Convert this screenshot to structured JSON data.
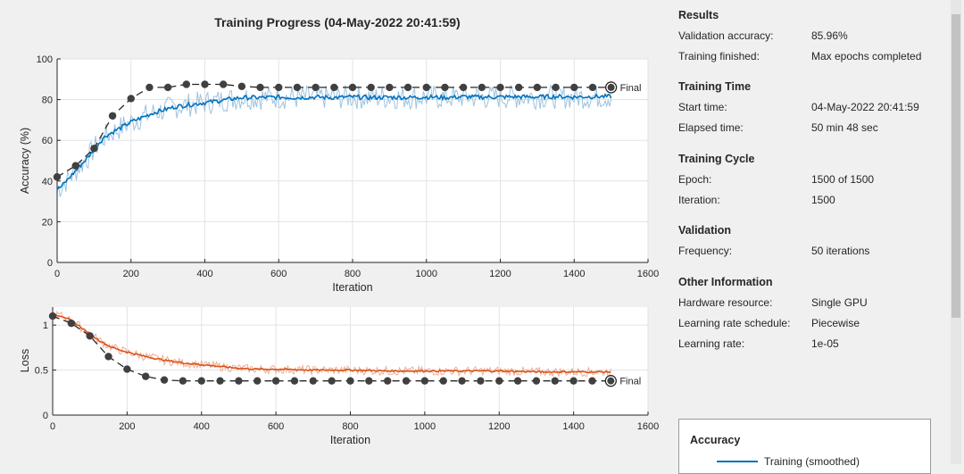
{
  "title": "Training Progress (04-May-2022 20:41:59)",
  "final_label": "Final",
  "colors": {
    "training_accuracy": "#0072bd",
    "training_loss": "#d95319",
    "validation": "#404040"
  },
  "chart_data": [
    {
      "type": "line",
      "ylabel": "Accuracy (%)",
      "xlabel": "Iteration",
      "xlim": [
        0,
        1600
      ],
      "ylim": [
        0,
        100
      ],
      "xticks": [
        "0",
        "200",
        "400",
        "600",
        "800",
        "1000",
        "1200",
        "1400",
        "1600"
      ],
      "yticks": [
        "0",
        "20",
        "40",
        "60",
        "80",
        "100"
      ],
      "grid": true,
      "series": [
        {
          "kind": "training_smoothed",
          "x": [
            0,
            10,
            20,
            30,
            40,
            50,
            60,
            70,
            80,
            90,
            100,
            110,
            120,
            130,
            140,
            150,
            160,
            170,
            180,
            190,
            200,
            220,
            240,
            260,
            280,
            300,
            320,
            340,
            360,
            380,
            400,
            420,
            440,
            460,
            480,
            500,
            550,
            600,
            650,
            700,
            750,
            800,
            850,
            900,
            950,
            1000,
            1050,
            1100,
            1150,
            1200,
            1250,
            1300,
            1350,
            1400,
            1450,
            1500
          ],
          "values": [
            36,
            37,
            39,
            41,
            43,
            45,
            47,
            49,
            51,
            53,
            56,
            58,
            60,
            62,
            63,
            64,
            65,
            66,
            67,
            68,
            69,
            70.5,
            72,
            73.5,
            74.5,
            75.5,
            76.5,
            77,
            77.5,
            78,
            78.5,
            79,
            79.5,
            80,
            80.5,
            81,
            81,
            81.2,
            81,
            81.2,
            81,
            81.3,
            81,
            81.2,
            81,
            81.3,
            81,
            81.4,
            81.2,
            81.3,
            81.4,
            81.3,
            81.5,
            81.3,
            81.5,
            81.5
          ]
        },
        {
          "kind": "validation",
          "x": [
            0,
            50,
            100,
            150,
            200,
            250,
            300,
            350,
            400,
            450,
            500,
            550,
            600,
            650,
            700,
            750,
            800,
            850,
            900,
            950,
            1000,
            1050,
            1100,
            1150,
            1200,
            1250,
            1300,
            1350,
            1400,
            1450,
            1500
          ],
          "values": [
            42,
            47.5,
            56,
            72,
            80.5,
            86,
            86,
            87.5,
            87.5,
            87.5,
            86.5,
            86,
            86,
            86,
            86,
            86,
            86,
            86,
            86,
            86,
            86,
            86,
            86,
            86,
            86,
            86,
            86,
            86,
            86,
            86,
            86
          ]
        }
      ]
    },
    {
      "type": "line",
      "ylabel": "Loss",
      "xlabel": "Iteration",
      "xlim": [
        0,
        1600
      ],
      "ylim": [
        0,
        1.2
      ],
      "xticks": [
        "0",
        "200",
        "400",
        "600",
        "800",
        "1000",
        "1200",
        "1400",
        "1600"
      ],
      "yticks": [
        "0",
        "0.5",
        "1"
      ],
      "grid": true,
      "series": [
        {
          "kind": "training_smoothed",
          "x": [
            0,
            25,
            50,
            75,
            100,
            125,
            150,
            175,
            200,
            250,
            300,
            350,
            400,
            450,
            500,
            550,
            600,
            700,
            800,
            900,
            1000,
            1100,
            1200,
            1300,
            1400,
            1500
          ],
          "values": [
            1.12,
            1.1,
            1.05,
            0.98,
            0.9,
            0.83,
            0.77,
            0.73,
            0.7,
            0.65,
            0.61,
            0.58,
            0.56,
            0.54,
            0.52,
            0.51,
            0.51,
            0.5,
            0.5,
            0.49,
            0.49,
            0.49,
            0.49,
            0.48,
            0.48,
            0.48
          ]
        },
        {
          "kind": "validation",
          "x": [
            0,
            50,
            100,
            150,
            200,
            250,
            300,
            350,
            400,
            450,
            500,
            550,
            600,
            650,
            700,
            750,
            800,
            850,
            900,
            950,
            1000,
            1050,
            1100,
            1150,
            1200,
            1250,
            1300,
            1350,
            1400,
            1450,
            1500
          ],
          "values": [
            1.1,
            1.02,
            0.88,
            0.65,
            0.51,
            0.43,
            0.39,
            0.38,
            0.38,
            0.38,
            0.38,
            0.38,
            0.38,
            0.38,
            0.38,
            0.38,
            0.38,
            0.38,
            0.38,
            0.38,
            0.38,
            0.38,
            0.38,
            0.38,
            0.38,
            0.38,
            0.38,
            0.38,
            0.38,
            0.38,
            0.38
          ]
        }
      ]
    }
  ],
  "panel": {
    "results": {
      "heading": "Results",
      "rows": [
        {
          "label": "Validation accuracy:",
          "value": "85.96%"
        },
        {
          "label": "Training finished:",
          "value": "Max epochs completed"
        }
      ]
    },
    "training_time": {
      "heading": "Training Time",
      "rows": [
        {
          "label": "Start time:",
          "value": "04-May-2022 20:41:59"
        },
        {
          "label": "Elapsed time:",
          "value": "50 min 48 sec"
        }
      ]
    },
    "training_cycle": {
      "heading": "Training Cycle",
      "rows": [
        {
          "label": "Epoch:",
          "value": "1500 of 1500"
        },
        {
          "label": "Iteration:",
          "value": "1500"
        }
      ]
    },
    "validation": {
      "heading": "Validation",
      "rows": [
        {
          "label": "Frequency:",
          "value": "50 iterations"
        }
      ]
    },
    "other_information": {
      "heading": "Other Information",
      "rows": [
        {
          "label": "Hardware resource:",
          "value": "Single GPU"
        },
        {
          "label": "Learning rate schedule:",
          "value": "Piecewise"
        },
        {
          "label": "Learning rate:",
          "value": "1e-05"
        }
      ]
    }
  },
  "legend": {
    "title": "Accuracy",
    "items": [
      {
        "label": "Training (smoothed)",
        "color": "#0072bd"
      }
    ]
  }
}
